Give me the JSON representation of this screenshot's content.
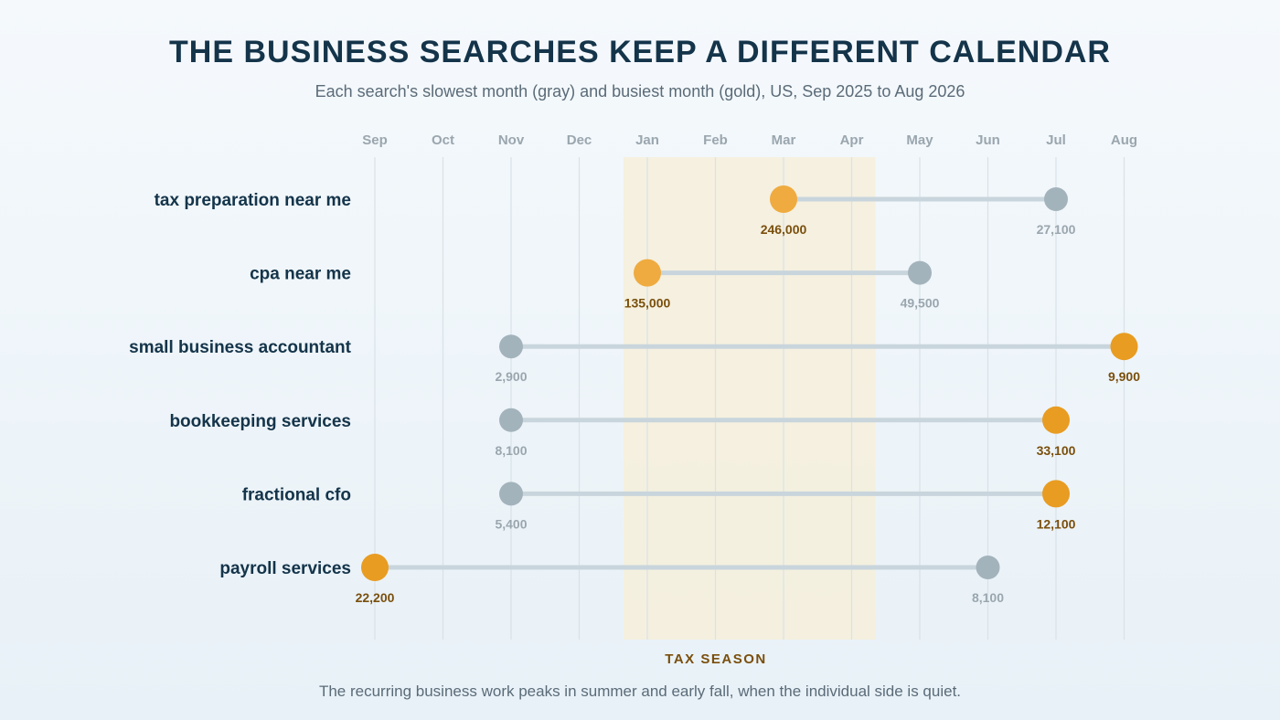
{
  "chart_data": {
    "type": "dumbbell",
    "title": "THE BUSINESS SEARCHES KEEP A DIFFERENT CALENDAR",
    "subtitle": "Each search's slowest month (gray) and busiest month (gold), US, Sep 2025 to Aug 2026",
    "months": [
      "Sep",
      "Oct",
      "Nov",
      "Dec",
      "Jan",
      "Feb",
      "Mar",
      "Apr",
      "May",
      "Jun",
      "Jul",
      "Aug"
    ],
    "highlight_band": {
      "label": "TAX SEASON",
      "from_month": "Jan",
      "to_month": "Apr"
    },
    "series": [
      {
        "name": "tax preparation near me",
        "low_month": "Jul",
        "low_value": 27100,
        "low_label": "27,100",
        "high_month": "Mar",
        "high_value": 246000,
        "high_label": "246,000"
      },
      {
        "name": "cpa near me",
        "low_month": "May",
        "low_value": 49500,
        "low_label": "49,500",
        "high_month": "Jan",
        "high_value": 135000,
        "high_label": "135,000"
      },
      {
        "name": "small business accountant",
        "low_month": "Nov",
        "low_value": 2900,
        "low_label": "2,900",
        "high_month": "Aug",
        "high_value": 9900,
        "high_label": "9,900"
      },
      {
        "name": "bookkeeping services",
        "low_month": "Nov",
        "low_value": 8100,
        "low_label": "8,100",
        "high_month": "Jul",
        "high_value": 33100,
        "high_label": "33,100"
      },
      {
        "name": "fractional cfo",
        "low_month": "Nov",
        "low_value": 5400,
        "low_label": "5,400",
        "high_month": "Jul",
        "high_value": 12100,
        "high_label": "12,100"
      },
      {
        "name": "payroll services",
        "low_month": "Jun",
        "low_value": 8100,
        "low_label": "8,100",
        "high_month": "Sep",
        "high_value": 22200,
        "high_label": "22,200"
      }
    ],
    "footnote": "The recurring business work peaks in summer and early fall, when the individual side is quiet.",
    "colors": {
      "low": "#a3b3bb",
      "high": "#e89c22",
      "high_in_band": "#efab3f",
      "connector": "#c9d5dc",
      "band": "#f6eedb",
      "grid": "#d9e2e8",
      "title": "#14344a",
      "band_label": "#7a4f0c"
    },
    "grid": true
  }
}
